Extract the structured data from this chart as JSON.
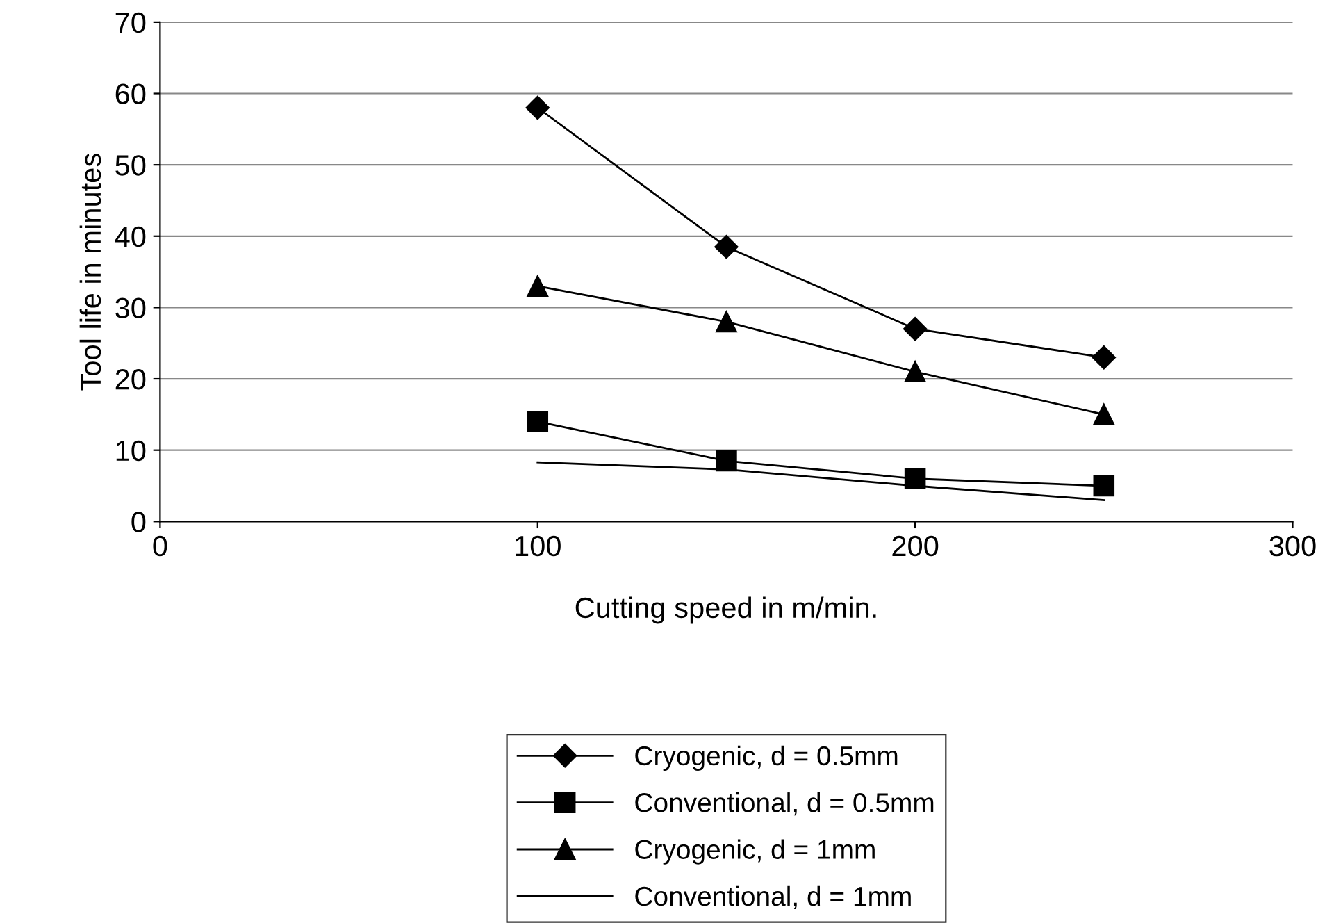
{
  "chart_data": {
    "type": "line",
    "xlabel": "Cutting speed in m/min.",
    "ylabel": "Tool life in minutes",
    "x": [
      100,
      150,
      200,
      250
    ],
    "series": [
      {
        "name": "Cryogenic, d = 0.5mm",
        "color": "#000000",
        "marker": "diamond",
        "values": [
          58,
          38.5,
          27,
          23
        ]
      },
      {
        "name": "Conventional, d = 0.5mm",
        "color": "#000000",
        "marker": "square",
        "values": [
          14,
          8.5,
          6,
          5
        ]
      },
      {
        "name": "Cryogenic, d = 1mm",
        "color": "#000000",
        "marker": "triangle",
        "values": [
          33,
          28,
          21,
          15
        ]
      },
      {
        "name": "Conventional, d = 1mm",
        "color": "#000000",
        "marker": "none",
        "values": [
          8.3,
          7.3,
          5,
          3
        ]
      }
    ],
    "xlim": [
      0,
      300
    ],
    "xticks": [
      0,
      100,
      200,
      300
    ],
    "ylim": [
      0,
      70
    ],
    "yticks": [
      0,
      10,
      20,
      30,
      40,
      50,
      60,
      70
    ],
    "grid": "y",
    "legend": "bottom",
    "line_style": "solid"
  }
}
